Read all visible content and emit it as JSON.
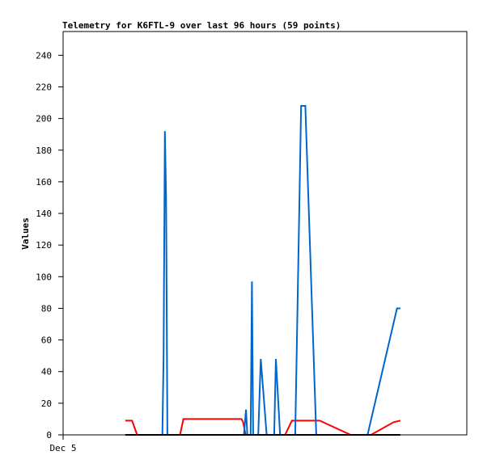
{
  "chart_data": {
    "type": "line",
    "title": "Telemetry for K6FTL-9 over last 96 hours (59 points)",
    "xlabel": "",
    "ylabel": "Values",
    "ylim": [
      0,
      255
    ],
    "yticks": [
      0,
      20,
      40,
      60,
      80,
      100,
      120,
      140,
      160,
      180,
      200,
      220,
      240
    ],
    "xlim": [
      0,
      96
    ],
    "xticks": [
      {
        "label": "Dec 5",
        "x": 0
      }
    ],
    "grid": false,
    "legend": "none",
    "series": [
      {
        "color": "#ff0000",
        "points": [
          [
            14.8,
            9
          ],
          [
            16.4,
            9
          ],
          [
            17.6,
            0
          ],
          [
            27.8,
            0
          ],
          [
            28.6,
            10
          ],
          [
            42.4,
            10
          ],
          [
            42.8,
            8
          ],
          [
            43.4,
            0
          ],
          [
            52.8,
            0
          ],
          [
            54.4,
            9
          ],
          [
            57.2,
            9
          ],
          [
            61.0,
            9
          ],
          [
            68.4,
            0
          ],
          [
            73.2,
            0
          ],
          [
            78.6,
            8
          ],
          [
            80.2,
            9
          ]
        ]
      },
      {
        "color": "#0066cc",
        "points": [
          [
            14.8,
            0
          ],
          [
            23.6,
            0
          ],
          [
            23.9,
            50
          ],
          [
            24.2,
            192
          ],
          [
            24.5,
            150
          ],
          [
            24.8,
            0
          ],
          [
            43.0,
            0
          ],
          [
            43.5,
            16
          ],
          [
            43.8,
            0
          ],
          [
            44.6,
            0
          ],
          [
            44.9,
            97
          ],
          [
            45.2,
            0
          ],
          [
            46.4,
            0
          ],
          [
            47.0,
            48
          ],
          [
            48.4,
            0
          ],
          [
            50.2,
            0
          ],
          [
            50.6,
            48
          ],
          [
            51.6,
            0
          ],
          [
            55.2,
            0
          ],
          [
            56.6,
            208
          ],
          [
            57.6,
            208
          ],
          [
            60.2,
            0
          ],
          [
            72.4,
            0
          ],
          [
            79.4,
            80
          ],
          [
            80.2,
            80
          ]
        ]
      },
      {
        "color": "#000000",
        "points": [
          [
            14.8,
            0
          ],
          [
            80.2,
            0
          ]
        ]
      }
    ]
  }
}
